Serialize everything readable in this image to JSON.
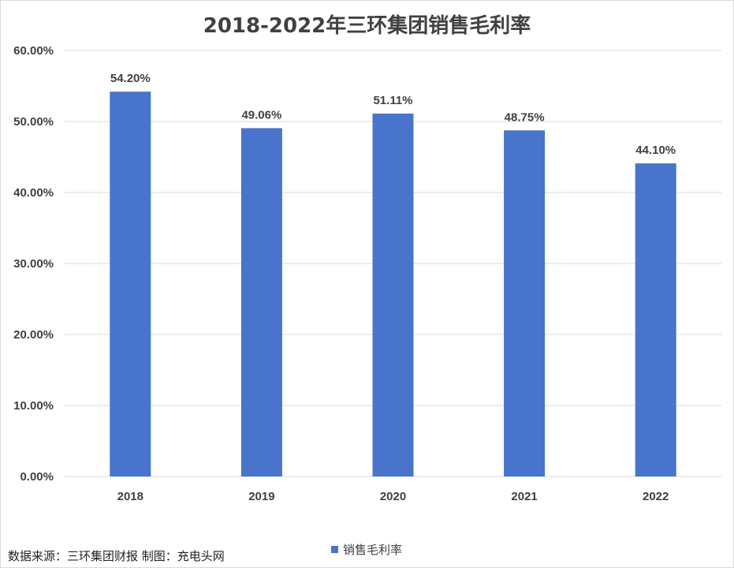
{
  "chart_data": {
    "type": "bar",
    "title": "2018-2022年三环集团销售毛利率",
    "categories": [
      "2018",
      "2019",
      "2020",
      "2021",
      "2022"
    ],
    "series": [
      {
        "name": "销售毛利率",
        "values": [
          54.2,
          49.06,
          51.11,
          48.75,
          44.1
        ],
        "data_labels": [
          "54.20%",
          "49.06%",
          "51.11%",
          "48.75%",
          "44.10%"
        ],
        "color": "#4874CB"
      }
    ],
    "y_ticks": [
      0,
      10,
      20,
      30,
      40,
      50,
      60
    ],
    "y_tick_labels": [
      "0.00%",
      "10.00%",
      "20.00%",
      "30.00%",
      "40.00%",
      "50.00%",
      "60.00%"
    ],
    "ylim": [
      0,
      60
    ],
    "grid": true,
    "legend_position": "bottom",
    "xlabel": "",
    "ylabel": ""
  },
  "footer": {
    "source_note": "数据来源：三环集团财报  制图：充电头网"
  },
  "colors": {
    "bar": "#4874CB",
    "grid": "#d9d9d9",
    "text": "#404040"
  }
}
